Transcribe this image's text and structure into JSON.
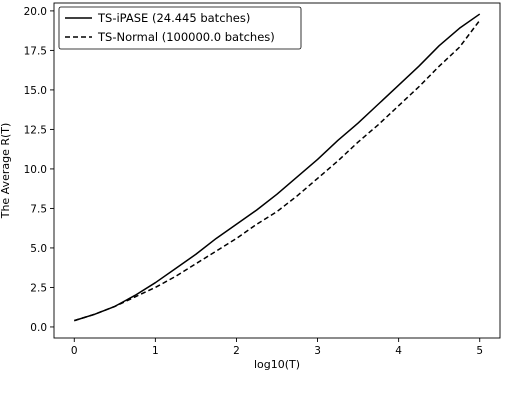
{
  "chart_data": {
    "type": "line",
    "title": "",
    "xlabel": "log10(T)",
    "ylabel": "The Average R(T)",
    "xlim": [
      -0.25,
      5.25
    ],
    "ylim": [
      -0.7,
      20.5
    ],
    "xticks": [
      0,
      1,
      2,
      3,
      4,
      5
    ],
    "xtick_labels": [
      "0",
      "1",
      "2",
      "3",
      "4",
      "5"
    ],
    "yticks": [
      0.0,
      2.5,
      5.0,
      7.5,
      10.0,
      12.5,
      15.0,
      17.5,
      20.0
    ],
    "ytick_labels": [
      "0.0",
      "2.5",
      "5.0",
      "7.5",
      "10.0",
      "12.5",
      "15.0",
      "17.5",
      "20.0"
    ],
    "grid": false,
    "legend_position": "top-left",
    "series": [
      {
        "name": "TS-iPASE (24.445 batches)",
        "line_style": "solid",
        "color": "#000000",
        "x": [
          0,
          0.25,
          0.5,
          0.75,
          1.0,
          1.25,
          1.5,
          1.75,
          2.0,
          2.25,
          2.5,
          2.75,
          3.0,
          3.25,
          3.5,
          3.75,
          4.0,
          4.25,
          4.5,
          4.75,
          5.0
        ],
        "values": [
          0.4,
          0.8,
          1.3,
          2.0,
          2.8,
          3.7,
          4.6,
          5.6,
          6.5,
          7.4,
          8.4,
          9.5,
          10.6,
          11.8,
          12.9,
          14.1,
          15.3,
          16.5,
          17.8,
          18.9,
          19.8
        ]
      },
      {
        "name": "TS-Normal (100000.0 batches)",
        "line_style": "dashed",
        "color": "#000000",
        "x": [
          0,
          0.25,
          0.5,
          0.75,
          1.0,
          1.25,
          1.5,
          1.75,
          2.0,
          2.25,
          2.5,
          2.75,
          3.0,
          3.25,
          3.5,
          3.75,
          4.0,
          4.25,
          4.5,
          4.75,
          5.0
        ],
        "values": [
          0.4,
          0.8,
          1.3,
          1.9,
          2.5,
          3.2,
          4.0,
          4.8,
          5.6,
          6.5,
          7.3,
          8.3,
          9.4,
          10.5,
          11.7,
          12.8,
          14.0,
          15.2,
          16.5,
          17.7,
          19.4
        ]
      }
    ]
  }
}
